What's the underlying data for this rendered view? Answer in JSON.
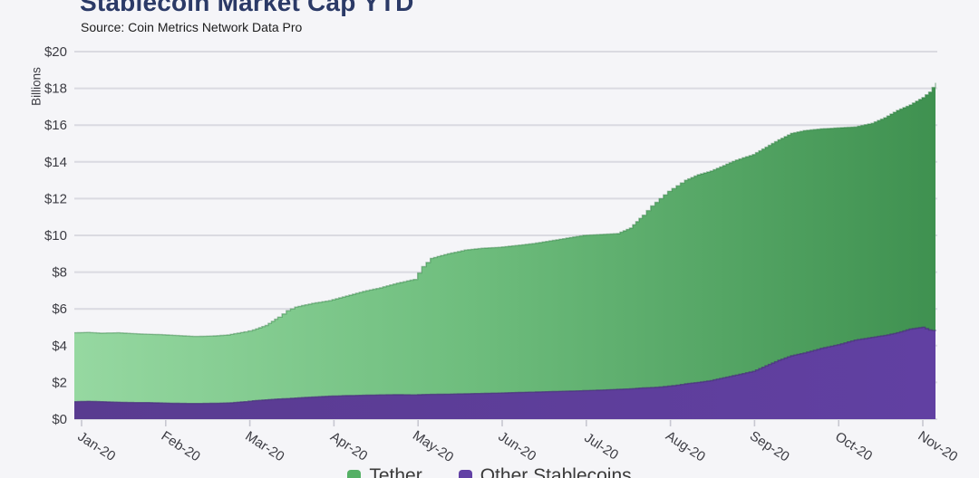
{
  "page": {
    "background": "#f5f5f8"
  },
  "chart_data": {
    "type": "area",
    "stacked": true,
    "title": "Stablecoin Market Cap YTD",
    "subtitle": "Source: Coin Metrics Network Data Pro",
    "ylabel": "Billions",
    "ylim": [
      0,
      20
    ],
    "y_ticks": [
      0,
      2,
      4,
      6,
      8,
      10,
      12,
      14,
      16,
      18,
      20
    ],
    "y_tick_prefix": "$",
    "grid": "horizontal",
    "legend_position": "bottom-center, partially cut off by image edge",
    "x_tick_labels": [
      "Jan-20",
      "Feb-20",
      "Mar-20",
      "Apr-20",
      "May-20",
      "Jun-20",
      "Jul-20",
      "Aug-20",
      "Sep-20",
      "Oct-20",
      "Nov-20"
    ],
    "x_ticks": [
      0,
      1,
      2,
      3,
      4,
      5,
      6,
      7,
      8,
      9,
      10
    ],
    "x_unit": "months since 2020-01-01",
    "x": [
      0,
      0.15,
      0.3,
      0.5,
      0.7,
      0.85,
      1,
      1.2,
      1.4,
      1.6,
      1.8,
      2,
      2.1,
      2.25,
      2.4,
      2.5,
      2.6,
      2.8,
      3,
      3.2,
      3.4,
      3.6,
      3.8,
      4,
      4.1,
      4.2,
      4.4,
      4.6,
      4.8,
      5,
      5.2,
      5.4,
      5.6,
      5.8,
      6,
      6.2,
      6.4,
      6.55,
      6.7,
      6.8,
      6.9,
      7,
      7.1,
      7.2,
      7.35,
      7.5,
      7.65,
      7.8,
      8,
      8.15,
      8.3,
      8.45,
      8.6,
      8.8,
      9,
      9.2,
      9.4,
      9.55,
      9.7,
      9.85,
      10,
      10.08,
      10.16
    ],
    "stack_order_bottom_to_top": [
      "Other Stablecoins",
      "Tether"
    ],
    "series": [
      {
        "name": "Other Stablecoins",
        "values": [
          0.95,
          0.97,
          0.95,
          0.92,
          0.9,
          0.9,
          0.88,
          0.86,
          0.85,
          0.86,
          0.88,
          0.95,
          1.0,
          1.05,
          1.1,
          1.12,
          1.15,
          1.2,
          1.25,
          1.28,
          1.3,
          1.32,
          1.33,
          1.32,
          1.34,
          1.35,
          1.36,
          1.38,
          1.4,
          1.42,
          1.45,
          1.47,
          1.5,
          1.52,
          1.55,
          1.58,
          1.62,
          1.65,
          1.7,
          1.72,
          1.75,
          1.8,
          1.85,
          1.92,
          2.0,
          2.1,
          2.25,
          2.4,
          2.6,
          2.9,
          3.2,
          3.45,
          3.6,
          3.85,
          4.05,
          4.3,
          4.45,
          4.55,
          4.7,
          4.9,
          5.0,
          4.85,
          4.8
        ]
      },
      {
        "name": "Tether",
        "values": [
          3.75,
          3.75,
          3.73,
          3.78,
          3.75,
          3.72,
          3.72,
          3.69,
          3.65,
          3.66,
          3.7,
          3.8,
          3.85,
          4.05,
          4.45,
          4.78,
          4.95,
          5.1,
          5.2,
          5.42,
          5.65,
          5.83,
          6.07,
          6.28,
          6.96,
          7.4,
          7.64,
          7.82,
          7.9,
          7.93,
          8.0,
          8.08,
          8.2,
          8.33,
          8.45,
          8.47,
          8.48,
          8.75,
          9.4,
          9.88,
          10.25,
          10.6,
          10.85,
          11.08,
          11.3,
          11.4,
          11.55,
          11.7,
          11.8,
          11.9,
          12.0,
          12.1,
          12.1,
          11.95,
          11.8,
          11.6,
          11.65,
          11.85,
          12.1,
          12.2,
          12.5,
          12.95,
          13.5
        ]
      }
    ],
    "legend": [
      {
        "label": "Tether",
        "color": "#55b065"
      },
      {
        "label": "Other Stablecoins",
        "color": "#6241a5"
      }
    ]
  },
  "colors": {
    "background": "#f5f5f8",
    "title": "#2b3a67",
    "subtitle_text": "#1c1c1c",
    "axis_text": "#3c3c43",
    "gridline": "#dadae1",
    "tick": "#c7c7d1",
    "tether_gradient": [
      "#96d8a1",
      "#6fbe7e",
      "#3f9150"
    ],
    "tether_edge": "#2f7d40",
    "other_gradient": [
      "#593b90",
      "#6140a2"
    ],
    "other_edge": "#48307b",
    "legend_text": "#3a3a3a"
  }
}
